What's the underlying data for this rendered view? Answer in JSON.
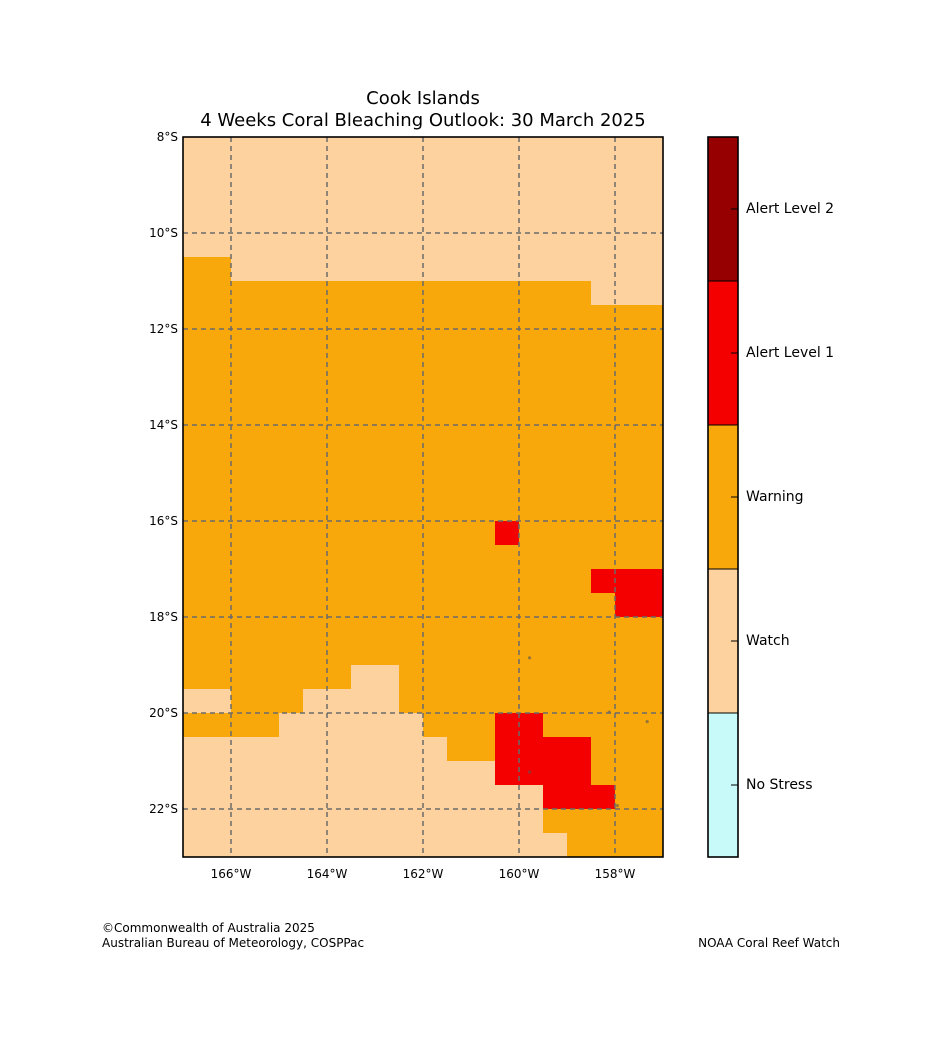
{
  "title": {
    "line1": "Cook Islands",
    "line2": "4 Weeks Coral Bleaching Outlook: 30 March 2025"
  },
  "map": {
    "lon_range": [
      -167,
      -157
    ],
    "lat_range": [
      -23,
      -8
    ],
    "lat_labels": [
      "8°S",
      "10°S",
      "12°S",
      "14°S",
      "16°S",
      "18°S",
      "20°S",
      "22°S"
    ],
    "lat_values": [
      -8,
      -10,
      -12,
      -14,
      -16,
      -18,
      -20,
      -22
    ],
    "lon_labels": [
      "166°W",
      "164°W",
      "162°W",
      "160°W",
      "158°W"
    ],
    "lon_values": [
      -166,
      -164,
      -162,
      -160,
      -158
    ],
    "base_category": "Warning",
    "regions": [
      {
        "category": "Watch",
        "cells": [
          [
            -167,
            -166,
            -10.5,
            -8
          ],
          [
            -166,
            -158.5,
            -11,
            -8
          ],
          [
            -158.5,
            -157,
            -11.5,
            -8
          ]
        ]
      },
      {
        "category": "Watch",
        "cells": [
          [
            -167,
            -166,
            -20,
            -19.5
          ],
          [
            -167,
            -157,
            -23,
            -20.5
          ],
          [
            -165,
            -164.5,
            -20.5,
            -20
          ],
          [
            -164.5,
            -162.5,
            -20.5,
            -19.5
          ],
          [
            -163.5,
            -162.5,
            -19.5,
            -19
          ],
          [
            -162.5,
            -162,
            -20.5,
            -20
          ]
        ]
      },
      {
        "category": "Warning",
        "cells": [
          [
            -162,
            -157,
            -20.5,
            -20
          ],
          [
            -161.5,
            -157,
            -21,
            -20.5
          ],
          [
            -160.5,
            -157,
            -21.5,
            -21
          ],
          [
            -159.5,
            -157,
            -22,
            -21.5
          ],
          [
            -159.5,
            -157,
            -22.5,
            -22
          ],
          [
            -159,
            -157,
            -23,
            -22.5
          ]
        ]
      },
      {
        "category": "Alert Level 1",
        "cells": [
          [
            -160.5,
            -160,
            -16.5,
            -16
          ],
          [
            -158.5,
            -157,
            -17.5,
            -17
          ],
          [
            -158,
            -157,
            -18,
            -17.5
          ],
          [
            -160.5,
            -159.5,
            -21.5,
            -20
          ],
          [
            -159.5,
            -158.5,
            -22,
            -20.5
          ],
          [
            -158.5,
            -158,
            -22,
            -21.5
          ]
        ]
      }
    ],
    "islands": [
      [
        -159.78,
        -18.85
      ],
      [
        -158.12,
        -19.98
      ],
      [
        -157.33,
        -20.18
      ],
      [
        -159.78,
        -21.23
      ],
      [
        -157.95,
        -21.93
      ]
    ]
  },
  "colorbar": {
    "categories": [
      {
        "label": "Alert Level 2",
        "color": "#960000"
      },
      {
        "label": "Alert Level 1",
        "color": "#f50000"
      },
      {
        "label": "Warning",
        "color": "#f9a80c"
      },
      {
        "label": "Watch",
        "color": "#fdd29f"
      },
      {
        "label": "No Stress",
        "color": "#c8fafa"
      }
    ]
  },
  "footer": {
    "credit_line1": "©Commonwealth of Australia 2025",
    "credit_line2": "Australian Bureau of Meteorology, COSPPac",
    "credit_right": "NOAA Coral Reef Watch"
  }
}
